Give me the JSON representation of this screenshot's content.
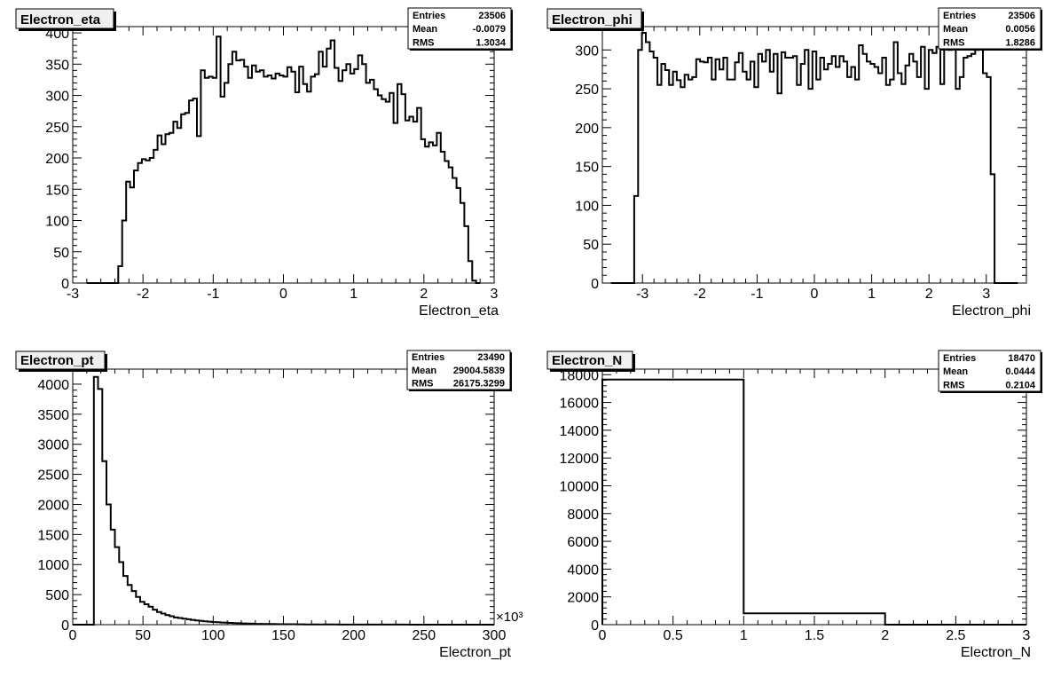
{
  "chart_data": [
    {
      "type": "bar",
      "title": "Electron_eta",
      "xlabel": "Electron_eta",
      "ylabel": "",
      "xlim": [
        -3,
        3
      ],
      "ylim": [
        0,
        410
      ],
      "xticks": [
        "-3",
        "-2",
        "-1",
        "0",
        "1",
        "2",
        "3"
      ],
      "yticks": [
        "0",
        "50",
        "100",
        "150",
        "200",
        "250",
        "300",
        "350",
        "400"
      ],
      "stats": {
        "entries_label": "Entries",
        "entries": "23506",
        "mean_label": "Mean",
        "mean": "-0.0079",
        "rms_label": "RMS",
        "rms": "1.3034"
      },
      "bin_edges_x": [
        -3,
        3
      ],
      "values": [
        0,
        0,
        0,
        0,
        0,
        0,
        0,
        0,
        27,
        100,
        162,
        153,
        180,
        192,
        198,
        196,
        200,
        213,
        236,
        222,
        238,
        240,
        258,
        248,
        270,
        272,
        292,
        295,
        235,
        340,
        328,
        330,
        328,
        394,
        298,
        320,
        350,
        370,
        356,
        357,
        346,
        328,
        348,
        338,
        340,
        330,
        332,
        327,
        335,
        332,
        330,
        345,
        338,
        305,
        346,
        318,
        306,
        330,
        334,
        370,
        346,
        375,
        388,
        344,
        323,
        340,
        350,
        335,
        342,
        364,
        350,
        320,
        325,
        310,
        300,
        294,
        290,
        304,
        256,
        318,
        302,
        260,
        266,
        258,
        280,
        230,
        218,
        225,
        220,
        240,
        210,
        195,
        185,
        168,
        152,
        128,
        91,
        35,
        4,
        0
      ]
    },
    {
      "type": "bar",
      "title": "Electron_phi",
      "xlabel": "Electron_phi",
      "ylabel": "",
      "xlim": [
        -3.7,
        3.7
      ],
      "ylim": [
        0,
        330
      ],
      "xticks": [
        "-3",
        "-2",
        "-1",
        "0",
        "1",
        "2",
        "3"
      ],
      "yticks": [
        "0",
        "50",
        "100",
        "150",
        "200",
        "250",
        "300"
      ],
      "stats": {
        "entries_label": "Entries",
        "entries": "23506",
        "mean_label": "Mean",
        "mean": "0.0056",
        "rms_label": "RMS",
        "rms": "1.8286"
      },
      "values": [
        0,
        0,
        0,
        0,
        0,
        0,
        112,
        300,
        322,
        310,
        298,
        290,
        255,
        282,
        274,
        255,
        272,
        261,
        252,
        268,
        262,
        265,
        288,
        285,
        284,
        290,
        262,
        288,
        275,
        290,
        262,
        262,
        284,
        296,
        272,
        262,
        285,
        252,
        295,
        285,
        300,
        272,
        295,
        244,
        297,
        290,
        290,
        292,
        255,
        282,
        300,
        250,
        298,
        262,
        290,
        275,
        282,
        292,
        278,
        292,
        285,
        265,
        278,
        262,
        306,
        295,
        285,
        282,
        278,
        270,
        290,
        255,
        262,
        310,
        270,
        256,
        280,
        295,
        285,
        265,
        304,
        250,
        300,
        296,
        304,
        256,
        310,
        300,
        302,
        250,
        265,
        290,
        292,
        295,
        300,
        310,
        270,
        265,
        140,
        0,
        0,
        0,
        0,
        0,
        0
      ]
    },
    {
      "type": "bar",
      "title": "Electron_pt",
      "xlabel": "Electron_pt",
      "ylabel": "",
      "x_multiplier": "×10³",
      "xlim": [
        0,
        300
      ],
      "ylim": [
        0,
        4250
      ],
      "xticks": [
        "0",
        "50",
        "100",
        "150",
        "200",
        "250",
        "300"
      ],
      "yticks": [
        "0",
        "500",
        "1000",
        "1500",
        "2000",
        "2500",
        "3000",
        "3500",
        "4000"
      ],
      "stats": {
        "entries_label": "Entries",
        "entries": "23490",
        "mean_label": "Mean",
        "mean": "29004.5839",
        "rms_label": "RMS",
        "rms": "26175.3299"
      },
      "values": [
        0,
        0,
        0,
        0,
        0,
        4120,
        3920,
        2720,
        2000,
        1580,
        1290,
        1040,
        810,
        660,
        560,
        460,
        380,
        340,
        300,
        250,
        210,
        185,
        160,
        140,
        120,
        110,
        100,
        90,
        80,
        70,
        62,
        56,
        50,
        45,
        40,
        36,
        32,
        29,
        26,
        23,
        20,
        18,
        16,
        14,
        13,
        12,
        11,
        10,
        9,
        8,
        8,
        7,
        7,
        6,
        6,
        5,
        5,
        4,
        4,
        4,
        3,
        3,
        3,
        2,
        2,
        2,
        2,
        2,
        2,
        1,
        1,
        1,
        1,
        1,
        1,
        1,
        1,
        1,
        1,
        1,
        0,
        0,
        0,
        0,
        0,
        0,
        0,
        0,
        0,
        0,
        0,
        0,
        0,
        0,
        0,
        0,
        0,
        0,
        0,
        0
      ]
    },
    {
      "type": "bar",
      "title": "Electron_N",
      "xlabel": "Electron_N",
      "ylabel": "",
      "xlim": [
        0,
        3
      ],
      "ylim": [
        0,
        18400
      ],
      "xticks": [
        "0",
        "0.5",
        "1",
        "1.5",
        "2",
        "2.5",
        "3"
      ],
      "yticks": [
        "0",
        "2000",
        "4000",
        "6000",
        "8000",
        "10000",
        "12000",
        "14000",
        "16000",
        "18000"
      ],
      "stats": {
        "entries_label": "Entries",
        "entries": "18470",
        "mean_label": "Mean",
        "mean": "0.0444",
        "rms_label": "RMS",
        "rms": "0.2104"
      },
      "values": [
        17650,
        820,
        0
      ]
    }
  ]
}
